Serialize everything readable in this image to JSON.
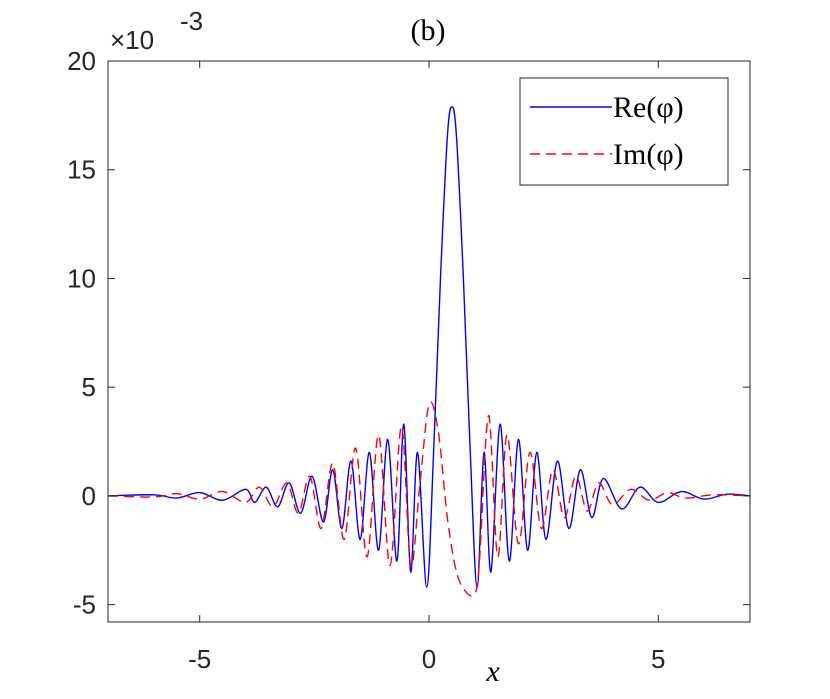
{
  "chart_data": {
    "type": "line",
    "title": "(b)",
    "xlabel": "x",
    "ylabel": "",
    "exponent_label": "×10",
    "exponent_power": "-3",
    "xlim": [
      -7,
      7
    ],
    "ylim": [
      -5.8,
      20
    ],
    "x_ticks": [
      -5,
      0,
      5
    ],
    "x_tick_labels": [
      "-5",
      "0",
      "5"
    ],
    "y_ticks": [
      -5,
      0,
      5,
      10,
      15,
      20
    ],
    "y_tick_labels": [
      "-5",
      "0",
      "5",
      "10",
      "15",
      "20"
    ],
    "y_unit_scale": 0.001,
    "grid": false,
    "legend_position": "top-right",
    "series": [
      {
        "name": "Re(φ)",
        "color": "#0000ff",
        "style": "solid",
        "x": [
          -7,
          -6,
          -5.5,
          -5,
          -4.5,
          -4,
          -3.8,
          -3.55,
          -3.3,
          -3.05,
          -2.8,
          -2.55,
          -2.3,
          -2.1,
          -1.9,
          -1.7,
          -1.5,
          -1.3,
          -1.1,
          -0.9,
          -0.7,
          -0.55,
          -0.4,
          -0.25,
          -0.05,
          0.1,
          0.25,
          0.4,
          0.5,
          0.6,
          0.75,
          0.9,
          1.05,
          1.2,
          1.35,
          1.55,
          1.75,
          1.95,
          2.15,
          2.35,
          2.55,
          2.8,
          3.05,
          3.3,
          3.55,
          3.8,
          4.2,
          4.6,
          5,
          5.5,
          6,
          6.5,
          7
        ],
        "values": [
          0,
          0.05,
          -0.1,
          0.15,
          -0.2,
          0.3,
          -0.3,
          0.4,
          -0.5,
          0.6,
          -0.8,
          0.9,
          -1.2,
          1.2,
          -1.5,
          1.6,
          -2.0,
          2.0,
          -2.5,
          2.6,
          -3.0,
          3.3,
          -3.5,
          2.0,
          -4.2,
          2.0,
          10.0,
          16.5,
          17.9,
          16.5,
          10.0,
          2.0,
          -4.2,
          2.0,
          -3.5,
          3.3,
          -3.0,
          2.6,
          -2.5,
          2.0,
          -2.0,
          1.6,
          -1.5,
          1.2,
          -1.0,
          0.8,
          -0.6,
          0.4,
          -0.3,
          0.2,
          -0.15,
          0.08,
          0
        ]
      },
      {
        "name": "Im(φ)",
        "color": "#ff0000",
        "style": "dashed",
        "x": [
          -7,
          -6,
          -5.5,
          -5,
          -4.5,
          -4,
          -3.7,
          -3.4,
          -3.1,
          -2.85,
          -2.6,
          -2.35,
          -2.1,
          -1.85,
          -1.6,
          -1.35,
          -1.1,
          -0.85,
          -0.6,
          -0.4,
          -0.2,
          0,
          0.2,
          0.4,
          0.6,
          0.8,
          1.0,
          1.1,
          1.3,
          1.5,
          1.7,
          1.95,
          2.2,
          2.45,
          2.7,
          2.95,
          3.2,
          3.45,
          3.7,
          4.0,
          4.4,
          4.8,
          5.2,
          5.6,
          6.2,
          7
        ],
        "values": [
          0,
          -0.05,
          0.1,
          -0.15,
          0.2,
          -0.3,
          0.4,
          -0.5,
          0.6,
          -0.8,
          0.9,
          -1.5,
          1.5,
          -2.0,
          2.2,
          -2.8,
          2.8,
          -3.2,
          3.2,
          -3.2,
          0.5,
          4.2,
          3.0,
          -1.0,
          -3.5,
          -4.4,
          -4.5,
          -3.0,
          3.7,
          -2.8,
          2.8,
          -2.2,
          2.0,
          -1.5,
          1.2,
          -1.0,
          0.9,
          -0.7,
          0.6,
          -0.4,
          0.3,
          -0.2,
          0.15,
          -0.1,
          0.05,
          0
        ]
      }
    ]
  }
}
